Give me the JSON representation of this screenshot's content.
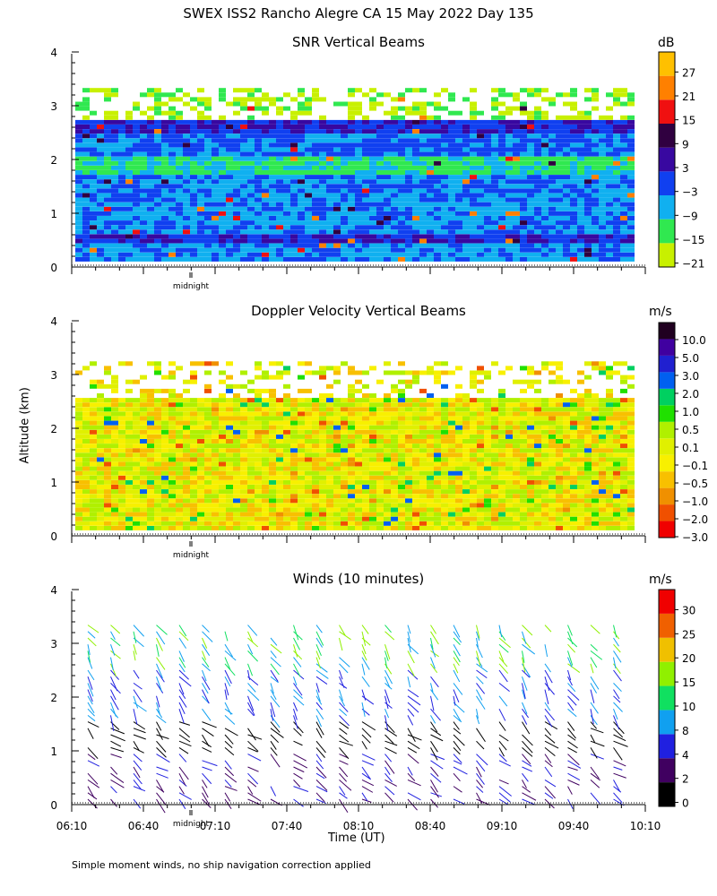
{
  "title": "SWEX ISS2 Rancho Alegre CA  15 May 2022 Day 135",
  "y_axis_label": "Altitude (km)",
  "x_axis_label": "Time (UT)",
  "footnote": "Simple moment winds, no ship navigation correction applied",
  "midnight_label": "midnight",
  "colors": {
    "snr_scale": [
      "#c8f000",
      "#30e850",
      "#10b0f0",
      "#1040f0",
      "#3808a0",
      "#300040",
      "#f01010",
      "#ff8000",
      "#ffc000"
    ],
    "velocity_scale": [
      "#f00000",
      "#f05000",
      "#f09000",
      "#f8c000",
      "#f8f000",
      "#e0f000",
      "#b0f000",
      "#20e000",
      "#00d060",
      "#0060f0",
      "#2020d0",
      "#4000a0",
      "#200020"
    ],
    "wind_scale": [
      "#000000",
      "#400060",
      "#2020e0",
      "#10a0f0",
      "#10e060",
      "#90f000",
      "#f0c000",
      "#f06000",
      "#f00000"
    ]
  },
  "chart_data": [
    {
      "type": "heatmap",
      "title": "SNR Vertical Beams",
      "colorbar_unit": "dB",
      "colorbar_ticks": [
        "27",
        "21",
        "15",
        "9",
        "3",
        "−3",
        "−9",
        "−15",
        "−21"
      ],
      "y_ticks": [
        "0",
        "1",
        "2",
        "3",
        "4"
      ],
      "ylim": [
        0,
        4
      ]
    },
    {
      "type": "heatmap",
      "title": "Doppler Velocity Vertical Beams",
      "colorbar_unit": "m/s",
      "colorbar_ticks": [
        "10.0",
        "5.0",
        "3.0",
        "2.0",
        "1.0",
        "0.5",
        "0.1",
        "−0.1",
        "−0.5",
        "−1.0",
        "−2.0",
        "−3.0"
      ],
      "y_ticks": [
        "0",
        "1",
        "2",
        "3",
        "4"
      ],
      "ylim": [
        0,
        4
      ]
    },
    {
      "type": "scatter",
      "title": "Winds (10 minutes)",
      "colorbar_unit": "m/s",
      "colorbar_ticks": [
        "30",
        "25",
        "20",
        "15",
        "10",
        "8",
        "4",
        "2",
        "0"
      ],
      "y_ticks": [
        "0",
        "1",
        "2",
        "3",
        "4"
      ],
      "x_ticks": [
        "06:10",
        "06:40",
        "07:10",
        "07:40",
        "08:10",
        "08:40",
        "09:10",
        "09:40",
        "10:10"
      ],
      "ylim": [
        0,
        4
      ]
    }
  ]
}
